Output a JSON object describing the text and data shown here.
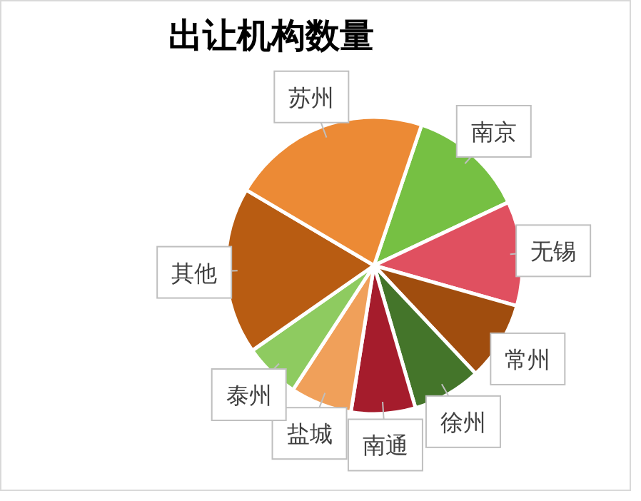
{
  "chart_data": {
    "type": "pie",
    "title": "出让机构数量",
    "categories": [
      "南京",
      "无锡",
      "常州",
      "徐州",
      "南通",
      "盐城",
      "泰州",
      "其他",
      "苏州"
    ],
    "values": [
      12.8,
      11.4,
      8.6,
      7.5,
      7.0,
      6.7,
      6.1,
      18.2,
      21.7
    ],
    "colors": [
      "#76c043",
      "#e05060",
      "#a04d0e",
      "#44752a",
      "#a51c2c",
      "#f0a05a",
      "#8ecb60",
      "#b85c12",
      "#ec8a35"
    ],
    "legend": false
  }
}
